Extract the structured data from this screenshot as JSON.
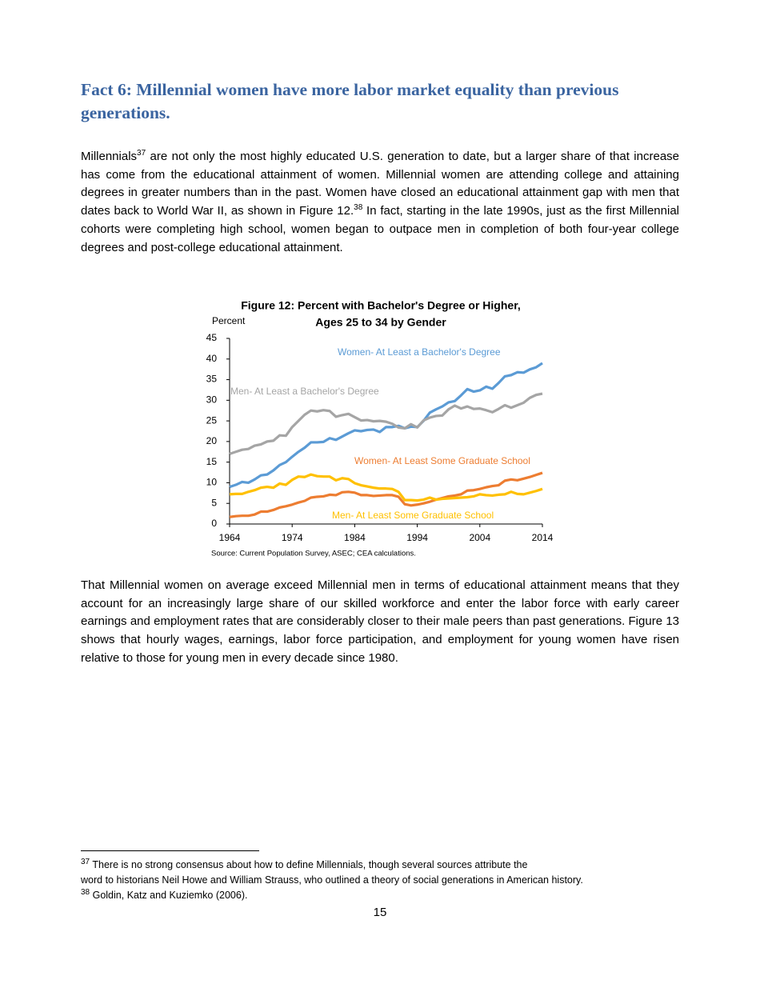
{
  "heading": "Fact 6: Millennial women have more labor market equality than previous generations.",
  "paragraphs": [
    {
      "runs": [
        {
          "text": "Millennials"
        },
        {
          "sup": "37"
        },
        {
          "text": " are not only the most highly educated U.S. generation to date, but a larger share of that increase has come from the educational attainment of women. Millennial women are attending college and attaining degrees in greater numbers than in the past. Women have closed an educational attainment gap with men that dates back to World War II, as shown in Figure 12."
        },
        {
          "sup": "38"
        },
        {
          "text": " In fact, starting in the late 1990s, just as the first Millennial cohorts were completing high school, women began to outpace men in completion of both four-year college degrees and post-college educational attainment."
        }
      ]
    },
    {
      "runs": [
        {
          "text": "That Millennial women on average exceed Millennial men in terms of educational attainment means that they account for an increasingly large share of our skilled workforce and enter the labor force with early career earnings and employment rates that are considerably closer to their male peers than past generations. Figure 13 shows that hourly wages, earnings, labor force participation, and employment for young women have risen relative to those for young men in every decade since 1980."
        }
      ]
    }
  ],
  "chart_data": {
    "type": "line",
    "title": [
      "Figure 12: Percent with Bachelor's Degree or Higher,",
      "Ages 25 to 34 by Gender"
    ],
    "y_label": "Percent",
    "source": "Source: Current Population Survey, ASEC; CEA calculations.",
    "x": [
      1964,
      1965,
      1966,
      1967,
      1968,
      1969,
      1970,
      1971,
      1972,
      1973,
      1974,
      1975,
      1976,
      1977,
      1978,
      1979,
      1980,
      1981,
      1982,
      1983,
      1984,
      1985,
      1986,
      1987,
      1988,
      1989,
      1990,
      1991,
      1992,
      1993,
      1994,
      1995,
      1996,
      1997,
      1998,
      1999,
      2000,
      2001,
      2002,
      2003,
      2004,
      2005,
      2006,
      2007,
      2008,
      2009,
      2010,
      2011,
      2012,
      2013,
      2014
    ],
    "xlim": [
      1964,
      2014
    ],
    "xticks": [
      1964,
      1974,
      1984,
      1994,
      2004,
      2014
    ],
    "ylim": [
      0,
      45
    ],
    "yticks": [
      0,
      5,
      10,
      15,
      20,
      25,
      30,
      35,
      40,
      45
    ],
    "series": [
      {
        "name": "Women- At Least a Bachelor's Degree",
        "color": "#5b9bd5",
        "values": [
          9,
          9.5,
          10.2,
          10,
          10.8,
          11.8,
          12,
          13,
          14.3,
          15,
          16.3,
          17.5,
          18.5,
          19.8,
          19.8,
          19.9,
          20.8,
          20.4,
          21.2,
          22,
          22.7,
          22.5,
          22.8,
          22.9,
          22.3,
          23.5,
          23.5,
          23.8,
          23.2,
          23.6,
          23.5,
          25,
          27,
          27.8,
          28.5,
          29.5,
          29.8,
          31.2,
          32.7,
          32.1,
          32.4,
          33.3,
          32.8,
          34.2,
          35.8,
          36.1,
          36.8,
          36.7,
          37.5,
          38,
          39
        ]
      },
      {
        "name": "Men- At Least a Bachelor's Degree",
        "color": "#a5a5a5",
        "values": [
          17,
          17.5,
          18,
          18.2,
          19,
          19.3,
          20,
          20.2,
          21.5,
          21.4,
          23.5,
          25,
          26.5,
          27.5,
          27.3,
          27.6,
          27.4,
          26,
          26.4,
          26.7,
          25.9,
          25.1,
          25.2,
          24.9,
          25,
          24.8,
          24.3,
          23.4,
          23.2,
          24.2,
          23.4,
          25.1,
          25.8,
          26.2,
          26.3,
          27.8,
          28.7,
          28,
          28.5,
          27.9,
          28,
          27.6,
          27.1,
          27.9,
          28.8,
          28.2,
          28.8,
          29.4,
          30.6,
          31.3,
          31.6
        ]
      },
      {
        "name": "Women- At Least Some Graduate School",
        "color": "#ed7d31",
        "values": [
          1.7,
          1.9,
          2,
          2,
          2.3,
          3,
          3,
          3.4,
          4,
          4.3,
          4.7,
          5.2,
          5.6,
          6.4,
          6.6,
          6.7,
          7.1,
          7,
          7.7,
          7.8,
          7.6,
          7,
          7,
          6.8,
          6.9,
          7,
          7,
          6.6,
          4.8,
          4.5,
          4.7,
          5,
          5.4,
          5.9,
          6.3,
          6.7,
          6.9,
          7.2,
          8.1,
          8.2,
          8.5,
          8.9,
          9.2,
          9.4,
          10.5,
          10.8,
          10.6,
          11,
          11.4,
          11.9,
          12.4
        ]
      },
      {
        "name": "Men- At Least Some Graduate School",
        "color": "#ffc000",
        "values": [
          7.2,
          7.3,
          7.3,
          7.8,
          8.2,
          8.8,
          9,
          8.8,
          9.8,
          9.5,
          10.7,
          11.5,
          11.4,
          12,
          11.6,
          11.5,
          11.5,
          10.6,
          11.1,
          10.9,
          9.9,
          9.4,
          9.1,
          8.8,
          8.6,
          8.6,
          8.5,
          7.8,
          5.8,
          5.8,
          5.7,
          5.9,
          6.4,
          5.9,
          6.1,
          6.2,
          6.3,
          6.4,
          6.5,
          6.7,
          7.2,
          7,
          6.9,
          7.1,
          7.2,
          7.8,
          7.3,
          7.2,
          7.6,
          8,
          8.5
        ]
      }
    ]
  },
  "footnotes": [
    {
      "marker": "37",
      "lines": [
        "There is no strong consensus about how to define Millennials, though several sources attribute the",
        "word to historians Neil Howe and William Strauss, who outlined a theory of social generations in American history."
      ]
    },
    {
      "marker": "38",
      "lines": [
        "Goldin, Katz and Kuziemko (2006)."
      ]
    }
  ],
  "page_number": 15
}
